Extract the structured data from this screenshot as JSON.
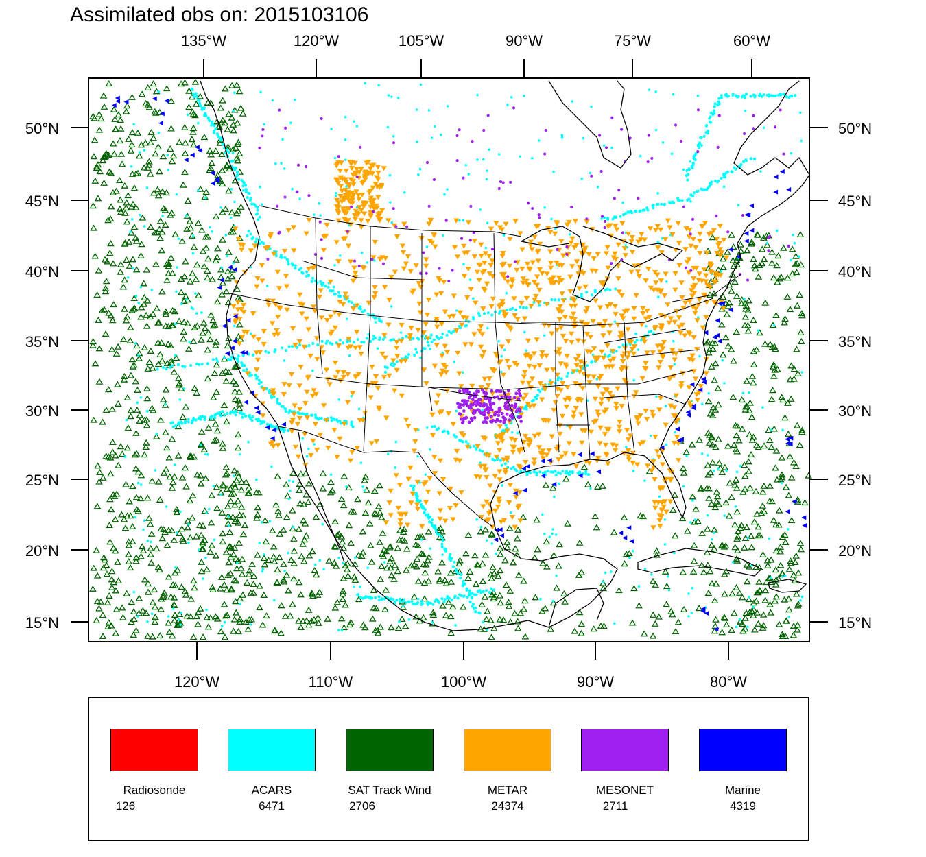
{
  "title": "Assimilated obs on: 2015103106",
  "top_lon_labels": [
    "135°W",
    "120°W",
    "105°W",
    "90°W",
    "75°W",
    "60°W"
  ],
  "bottom_lon_labels": [
    "120°W",
    "110°W",
    "100°W",
    "90°W",
    "80°W"
  ],
  "lat_labels": [
    "50°N",
    "45°N",
    "40°N",
    "35°N",
    "30°N",
    "25°N",
    "20°N",
    "15°N"
  ],
  "legend": [
    {
      "name": "Radiosonde",
      "count": "126",
      "color": "#ff0000"
    },
    {
      "name": "ACARS",
      "count": "6471",
      "color": "#00ffff"
    },
    {
      "name": "SAT Track Wind",
      "count": "2706",
      "color": "#006400"
    },
    {
      "name": "METAR",
      "count": "24374",
      "color": "#ffa500"
    },
    {
      "name": "MESONET",
      "count": "2711",
      "color": "#a020f0"
    },
    {
      "name": "Marine",
      "count": "4319",
      "color": "#0000ff"
    }
  ]
}
